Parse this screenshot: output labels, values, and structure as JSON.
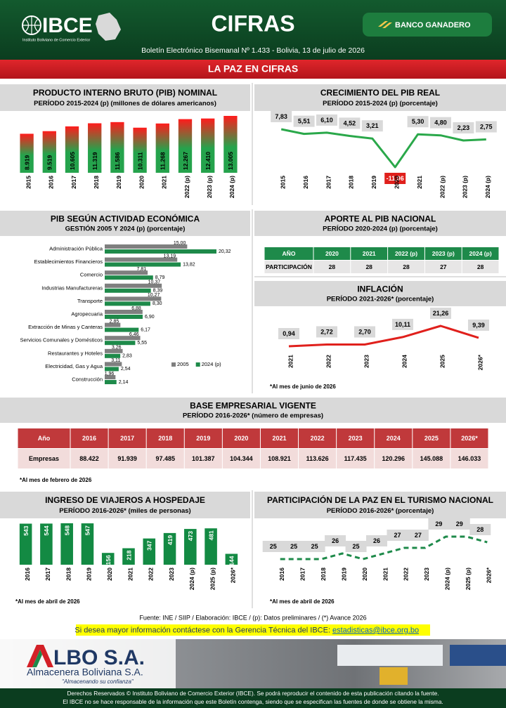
{
  "header": {
    "logo": "IBCE",
    "logo_caption": "Instituto Boliviano de Comercio Exterior",
    "title": "CIFRAS",
    "sponsor": "BANCO GANADERO",
    "subtitle": "Boletín Electrónico Bisemanal Nº 1.433 - Bolivia, 13 de julio de 2026"
  },
  "banner": "LA PAZ EN CIFRAS",
  "chart_data": [
    {
      "type": "bar",
      "title": "PRODUCTO INTERNO BRUTO (PIB) NOMINAL",
      "subtitle": "PERÍODO 2015-2024 (p) (millones de dólares americanos)",
      "categories": [
        "2015",
        "2016",
        "2017",
        "2018",
        "2019",
        "2020",
        "2021",
        "2022 (p)",
        "2023 (p)",
        "2024 (p)"
      ],
      "values": [
        8919,
        9519,
        10605,
        11319,
        11586,
        10311,
        11268,
        12267,
        12410,
        13005
      ],
      "value_labels": [
        "8.919",
        "9.519",
        "10.605",
        "11.319",
        "11.586",
        "10.311",
        "11.268",
        "12.267",
        "12.410",
        "13.005"
      ],
      "gradient": [
        "#ff1c1c",
        "#25a34c"
      ]
    },
    {
      "type": "line",
      "title": "CRECIMIENTO DEL PIB REAL",
      "subtitle": "PERÍODO 2015-2024 (p) (porcentaje)",
      "categories": [
        "2015",
        "2016",
        "2017",
        "2018",
        "2019",
        "2020",
        "2021",
        "2022 (p)",
        "2023 (p)",
        "2024 (p)"
      ],
      "values": [
        7.83,
        5.51,
        6.1,
        4.52,
        3.21,
        -11.06,
        5.3,
        4.8,
        2.23,
        2.75
      ],
      "value_labels": [
        "7,83",
        "5,51",
        "6,10",
        "4,52",
        "3,21",
        "-11,06",
        "5,30",
        "4,80",
        "2,23",
        "2,75"
      ],
      "color": "#2aa84a"
    },
    {
      "type": "hbar",
      "title": "PIB SEGÚN ACTIVIDAD ECONÓMICA",
      "subtitle": "GESTIÓN 2005 Y 2024 (p) (porcentaje)",
      "categories": [
        "Administración Pública",
        "Establecimientos Financieros",
        "Comercio",
        "Industrias Manufactureras",
        "Transporte",
        "Agropecuaria",
        "Extracción de Minas y Canteras",
        "Servicios Comunales y Domésticos",
        "Restaurantes y Hoteles",
        "Electricidad, Gas y Agua",
        "Construcción"
      ],
      "series": [
        {
          "name": "2005",
          "color": "#7f7f7f",
          "values": [
            15.0,
            13.19,
            7.81,
            10.37,
            10.27,
            6.88,
            2.85,
            6.46,
            3.26,
            3.11,
            1.96
          ],
          "value_labels": [
            "15,00",
            "13,19",
            "7,81",
            "10,37",
            "10,27",
            "6,88",
            "2,85",
            "6,46",
            "3,26",
            "3,11",
            "1,96"
          ]
        },
        {
          "name": "2024 (p)",
          "color": "#1e8a4a",
          "values": [
            20.32,
            13.82,
            8.79,
            8.39,
            8.3,
            6.9,
            6.17,
            5.55,
            2.83,
            2.54,
            2.14
          ],
          "value_labels": [
            "20,32",
            "13,82",
            "8,79",
            "8,39",
            "8,30",
            "6,90",
            "6,17",
            "5,55",
            "2,83",
            "2,54",
            "2,14"
          ]
        }
      ],
      "legend": "bottom-right"
    },
    {
      "type": "table",
      "title": "APORTE AL PIB NACIONAL",
      "subtitle": "PERÍODO 2020-2024 (p) (porcentaje)",
      "header": [
        "AÑO",
        "2020",
        "2021",
        "2022 (p)",
        "2023 (p)",
        "2024 (p)"
      ],
      "rows": [
        [
          "PARTICIPACIÓN",
          "28",
          "28",
          "28",
          "27",
          "28"
        ]
      ],
      "header_color": "#1e8a4a",
      "row_color": "#e7e6e6"
    },
    {
      "type": "line",
      "title": "INFLACIÓN",
      "subtitle": "PERÍODO 2021-2026* (porcentaje)",
      "categories": [
        "2021",
        "2022",
        "2023",
        "2024",
        "2025",
        "2026*"
      ],
      "values": [
        0.94,
        2.72,
        2.7,
        10.11,
        21.26,
        9.39
      ],
      "value_labels": [
        "0,94",
        "2,72",
        "2,70",
        "10,11",
        "21,26",
        "9,39"
      ],
      "color": "#e0201c",
      "note": "*Al mes de junio de 2026"
    },
    {
      "type": "table",
      "title": "BASE EMPRESARIAL VIGENTE",
      "subtitle": "PERÍODO 2016-2026* (número de empresas)",
      "header": [
        "Año",
        "2016",
        "2017",
        "2018",
        "2019",
        "2020",
        "2021",
        "2022",
        "2023",
        "2024",
        "2025",
        "2026*"
      ],
      "rows": [
        [
          "Empresas",
          "88.422",
          "91.939",
          "97.485",
          "101.387",
          "104.344",
          "108.921",
          "113.626",
          "117.435",
          "120.296",
          "145.088",
          "146.033"
        ]
      ],
      "header_color": "#c0393b",
      "row_color": "#f2dcdb",
      "note": "*Al mes de febrero de 2026"
    },
    {
      "type": "bar",
      "title": "INGRESO DE VIAJEROS A HOSPEDAJE",
      "subtitle": "PERÍODO 2016-2026* (miles de personas)",
      "categories": [
        "2016",
        "2017",
        "2018",
        "2019",
        "2020",
        "2021",
        "2022",
        "2023",
        "2024 (p)",
        "2025 (p)",
        "2026*"
      ],
      "values": [
        543,
        544,
        548,
        547,
        156,
        218,
        347,
        419,
        473,
        481,
        144
      ],
      "color": "#138a43",
      "note": "*Al mes de abril de 2026"
    },
    {
      "type": "line",
      "title": "PARTICIPACIÓN DE LA PAZ EN EL TURISMO NACIONAL",
      "subtitle": "PERÍODO 2016-2026* (porcentaje)",
      "categories": [
        "2016",
        "2017",
        "2018",
        "2019",
        "2020",
        "2021",
        "2022",
        "2023",
        "2024 (p)",
        "2025 (p)",
        "2026*"
      ],
      "values": [
        25,
        25,
        25,
        26,
        25,
        26,
        27,
        27,
        29,
        29,
        28
      ],
      "color": "#1e8a4a",
      "dashed": true,
      "note": "*Al mes de abril de 2026"
    }
  ],
  "footer": {
    "source": "Fuente: INE / SIIP / Elaboración: IBCE / (p): Datos preliminares / (*) Avance 2026",
    "contact": "Si desea mayor información contáctese con la Gerencia Técnica del IBCE:",
    "email": "estadisticas@ibce.org.bo",
    "ad_name": "LBO S.A.",
    "ad_company": "Almacenera Boliviana S.A.",
    "ad_slogan": "\"Almacenando su confianza\"",
    "rights": "Derechos Reservados © Instituto Boliviano de Comercio Exterior (IBCE). Se podrá reproducir el contenido de esta publicación citando la fuente.",
    "disclaimer": "El IBCE no se hace responsable de la información que este Boletín contenga, siendo que se especifican las fuentes de donde se obtiene la misma."
  }
}
